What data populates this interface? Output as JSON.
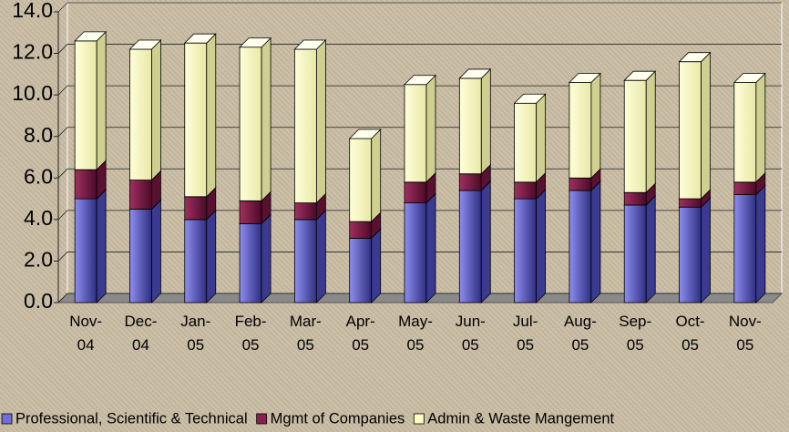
{
  "chart_data": {
    "type": "bar3d_stacked",
    "categories": [
      "Nov-04",
      "Dec-04",
      "Jan-05",
      "Feb-05",
      "Mar-05",
      "Apr-05",
      "May-05",
      "Jun-05",
      "Jul-05",
      "Aug-05",
      "Sep-05",
      "Oct-05",
      "Nov-05"
    ],
    "series": [
      {
        "name": "Professional, Scientific & Technical",
        "color": "#6f6fd8",
        "values": [
          5.0,
          4.5,
          4.0,
          3.8,
          4.0,
          3.1,
          4.8,
          5.4,
          5.0,
          5.4,
          4.7,
          4.6,
          5.2
        ]
      },
      {
        "name": "Mgmt of Companies",
        "color": "#8a2050",
        "values": [
          1.4,
          1.4,
          1.1,
          1.1,
          0.8,
          0.8,
          1.0,
          0.8,
          0.8,
          0.6,
          0.6,
          0.4,
          0.6
        ]
      },
      {
        "name": "Admin & Waste Mangement",
        "color": "#ffffc4",
        "values": [
          6.2,
          6.3,
          7.4,
          7.4,
          7.4,
          4.0,
          4.7,
          4.6,
          3.8,
          4.6,
          5.4,
          6.6,
          4.8
        ]
      }
    ],
    "ylim": [
      0,
      14
    ],
    "yticks": [
      {
        "value": 0,
        "label": "0.0"
      },
      {
        "value": 2,
        "label": "2.0"
      },
      {
        "value": 4,
        "label": "4.0"
      },
      {
        "value": 6,
        "label": "6.0"
      },
      {
        "value": 8,
        "label": "8.0"
      },
      {
        "value": 10,
        "label": "10.0"
      },
      {
        "value": 12,
        "label": "12.0"
      },
      {
        "value": 14,
        "label": "14.0"
      }
    ],
    "grid": true,
    "legend": "bottom"
  }
}
